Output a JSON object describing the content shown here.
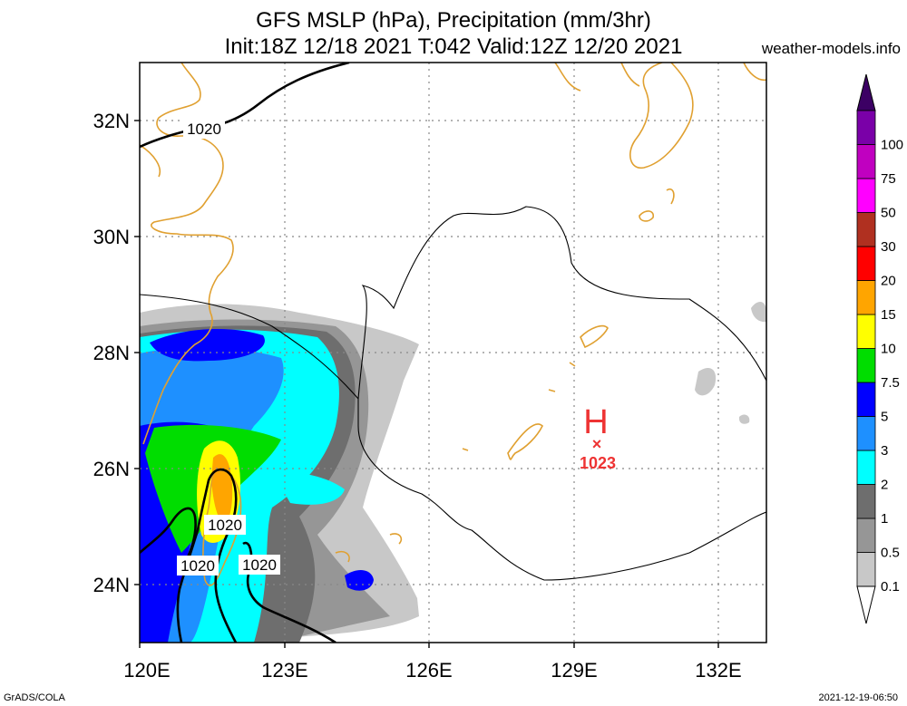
{
  "title": {
    "line1": "GFS MSLP (hPa), Precipitation (mm/3hr)",
    "line2": "Init:18Z 12/18 2021 T:042 Valid:12Z 12/20 2021",
    "site": "weather-models.info"
  },
  "axes": {
    "lat_ticks": [
      "24N",
      "26N",
      "28N",
      "30N",
      "32N"
    ],
    "lon_ticks": [
      "120E",
      "123E",
      "126E",
      "129E",
      "132E"
    ],
    "lat_values": [
      24,
      26,
      28,
      30,
      32
    ],
    "lon_values": [
      120,
      123,
      126,
      129,
      132
    ],
    "lon_range": [
      120,
      133
    ],
    "lat_range": [
      23,
      33
    ]
  },
  "isobars": {
    "labels": [
      "1020",
      "1020",
      "1020",
      "1020"
    ]
  },
  "high": {
    "letter": "H",
    "marker": "×",
    "value": "1023"
  },
  "colorbar": {
    "levels": [
      "0.1",
      "0.5",
      "1",
      "2",
      "3",
      "5",
      "7.5",
      "10",
      "15",
      "20",
      "30",
      "50",
      "75",
      "100"
    ],
    "colors": [
      "#c8c8c8",
      "#969696",
      "#6e6e6e",
      "#00ffff",
      "#1e90ff",
      "#0000ff",
      "#00dd00",
      "#ffff00",
      "#ffa500",
      "#ff0000",
      "#b03020",
      "#ff00ff",
      "#c000c0",
      "#7a00a8"
    ],
    "top_color": "#3c0064"
  },
  "footer": {
    "left": "GrADS/COLA",
    "right": "2021-12-19-06:50"
  },
  "colors": {
    "coast": "#e0a030",
    "high": "#ee3333",
    "grid": "#888888"
  }
}
